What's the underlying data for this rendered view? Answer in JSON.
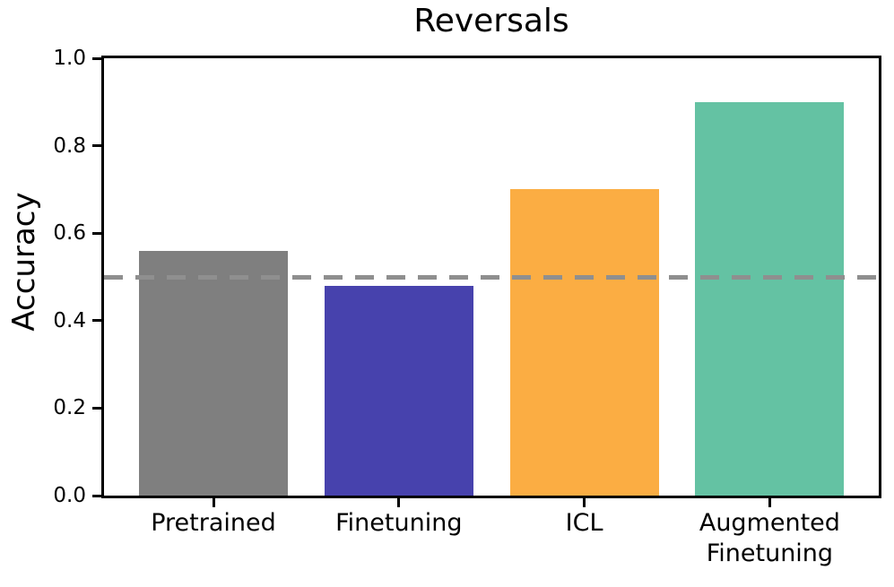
{
  "chart_data": {
    "type": "bar",
    "title": "Reversals",
    "ylabel": "Accuracy",
    "xlabel": "",
    "categories": [
      "Pretrained",
      "Finetuning",
      "ICL",
      "Augmented\nFinetuning"
    ],
    "values": [
      0.56,
      0.48,
      0.7,
      0.9
    ],
    "bar_colors": [
      "#7f7f7f",
      "#4742ad",
      "#fbad43",
      "#64c2a3"
    ],
    "ylim": [
      0.0,
      1.0
    ],
    "yticks": [
      0.0,
      0.2,
      0.4,
      0.6,
      0.8,
      1.0
    ],
    "ytick_labels": [
      "0.0",
      "0.2",
      "0.4",
      "0.6",
      "0.8",
      "1.0"
    ],
    "reference_line": {
      "value": 0.5,
      "style": "dashed",
      "color": "#8f8f8f"
    },
    "grid": false,
    "legend": "none",
    "axis_color": "#000000",
    "background_color": "#ffffff"
  }
}
